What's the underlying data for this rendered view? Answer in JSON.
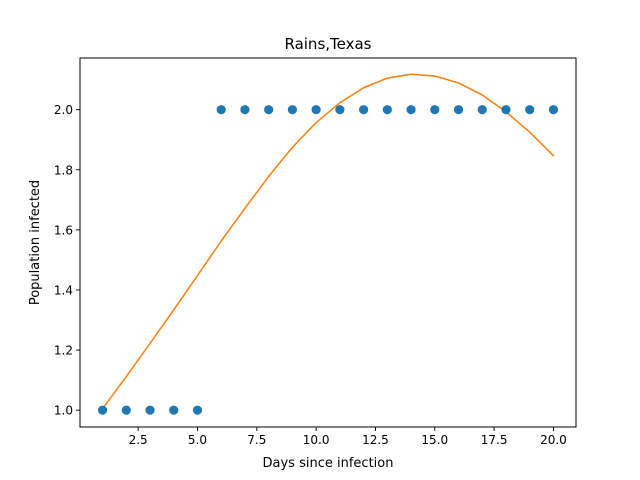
{
  "chart_data": {
    "type": "scatter",
    "title": "Rains,Texas",
    "xlabel": "Days since infection",
    "ylabel": "Population infected",
    "xlim": [
      0.05,
      20.95
    ],
    "ylim": [
      0.944,
      2.172
    ],
    "xticks": [
      2.5,
      5.0,
      7.5,
      10.0,
      12.5,
      15.0,
      17.5,
      20.0
    ],
    "xtick_labels": [
      "2.5",
      "5.0",
      "7.5",
      "10.0",
      "12.5",
      "15.0",
      "17.5",
      "20.0"
    ],
    "yticks": [
      1.0,
      1.2,
      1.4,
      1.6,
      1.8,
      2.0
    ],
    "ytick_labels": [
      "1.0",
      "1.2",
      "1.4",
      "1.6",
      "1.8",
      "2.0"
    ],
    "grid": false,
    "series": [
      {
        "kind": "scatter",
        "color": "#1f77b4",
        "x": [
          1,
          2,
          3,
          4,
          5,
          6,
          7,
          8,
          9,
          10,
          11,
          12,
          13,
          14,
          15,
          16,
          17,
          18,
          19,
          20
        ],
        "y": [
          1,
          1,
          1,
          1,
          1,
          2,
          2,
          2,
          2,
          2,
          2,
          2,
          2,
          2,
          2,
          2,
          2,
          2,
          2,
          2
        ]
      },
      {
        "kind": "line",
        "color": "#ff7f0e",
        "x": [
          1,
          2,
          3,
          4,
          5,
          6,
          7,
          8,
          9,
          10,
          11,
          12,
          13,
          14,
          15,
          16,
          17,
          18,
          19,
          20
        ],
        "y": [
          1.005,
          1.112,
          1.222,
          1.334,
          1.448,
          1.563,
          1.672,
          1.778,
          1.875,
          1.957,
          2.023,
          2.073,
          2.105,
          2.118,
          2.112,
          2.089,
          2.049,
          1.993,
          1.925,
          1.847
        ]
      }
    ]
  }
}
